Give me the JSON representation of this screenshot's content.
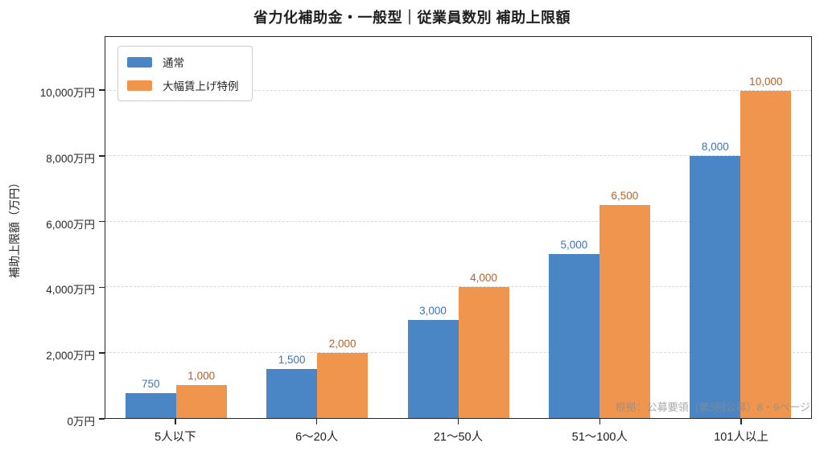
{
  "title": "省力化補助金・一般型｜従業員数別 補助上限額",
  "y_axis": {
    "label": "補助上限額（万円）",
    "ticks": [
      {
        "value": 0,
        "label": "0万円"
      },
      {
        "value": 2000,
        "label": "2,000万円"
      },
      {
        "value": 4000,
        "label": "4,000万円"
      },
      {
        "value": 6000,
        "label": "6,000万円"
      },
      {
        "value": 8000,
        "label": "8,000万円"
      },
      {
        "value": 10000,
        "label": "10,000万円"
      }
    ]
  },
  "source_note": "根拠：公募要領（第5回公募）8・9ページ",
  "colors": {
    "bar_blue": "#4a86c6",
    "bar_orange": "#f0954e",
    "label_blue": "#3d73b8",
    "label_orange": "#bd5e1f",
    "axis": "#262626",
    "gridline": "#d9d9d9"
  },
  "chart_data": {
    "type": "bar",
    "title": "省力化補助金・一般型｜従業員数別 補助上限額",
    "categories": [
      "5人以下",
      "6〜20人",
      "21〜50人",
      "51〜100人",
      "101人以上"
    ],
    "series": [
      {
        "name": "通常",
        "color": "#4a86c6",
        "label_color": "#3d73b8",
        "values": [
          750,
          1500,
          3000,
          5000,
          8000
        ],
        "value_labels": [
          "750",
          "1,500",
          "3,000",
          "5,000",
          "8,000"
        ]
      },
      {
        "name": "大幅賃上げ特例",
        "color": "#f0954e",
        "label_color": "#bd5e1f",
        "values": [
          1000,
          2000,
          4000,
          6500,
          10000
        ],
        "value_labels": [
          "1,000",
          "2,000",
          "4,000",
          "6,500",
          "10,000"
        ]
      }
    ],
    "xlabel": "",
    "ylabel": "補助上限額（万円）",
    "ylim": [
      0,
      11640
    ],
    "ytick_step": 2000,
    "grid": "horizontal-dashed",
    "legend_position": "upper-left",
    "bar_value_labels": true
  }
}
